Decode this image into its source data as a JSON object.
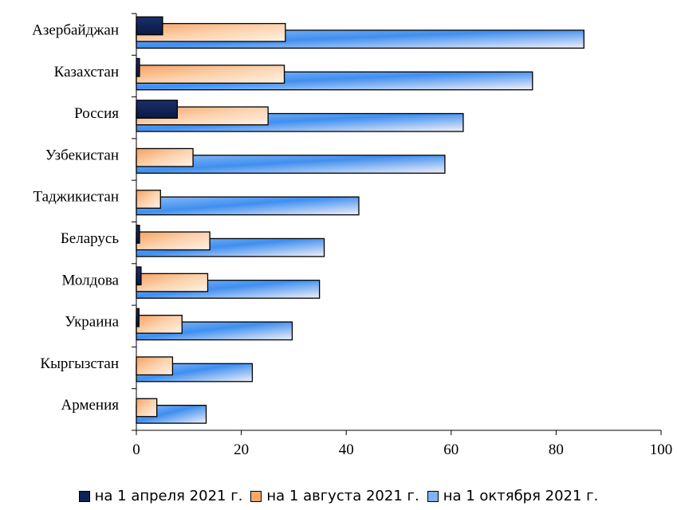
{
  "chart_data": {
    "type": "bar",
    "orientation": "horizontal",
    "title": "",
    "xlabel": "",
    "ylabel": "",
    "categories": [
      "Азербайджан",
      "Казахстан",
      "Россия",
      "Узбекистан",
      "Таджикистан",
      "Беларусь",
      "Молдова",
      "Украина",
      "Кыргызстан",
      "Армения"
    ],
    "series": [
      {
        "name": "на 1 апреля 2021 г.",
        "color": "#0f2456",
        "values": [
          5.0,
          0.6,
          7.8,
          0,
          0,
          0.6,
          0.9,
          0.5,
          0,
          0
        ]
      },
      {
        "name": "на 1 августа 2021 г.",
        "color": "#f8a86a",
        "values": [
          28.4,
          28.2,
          25.1,
          10.8,
          4.6,
          14.0,
          13.6,
          8.7,
          6.9,
          3.9
        ]
      },
      {
        "name": "на 1 октября 2021 г.",
        "color": "#7fb2f6",
        "values": [
          85.3,
          75.5,
          62.3,
          58.8,
          42.4,
          35.8,
          34.9,
          29.7,
          22.1,
          13.3
        ]
      }
    ],
    "xlim": [
      0,
      100
    ],
    "xticks": [
      0,
      20,
      40,
      60,
      80,
      100
    ],
    "xtick_labels": [
      "0",
      "20",
      "40",
      "60",
      "80",
      "100"
    ],
    "grid": false,
    "legend_position": "bottom"
  }
}
